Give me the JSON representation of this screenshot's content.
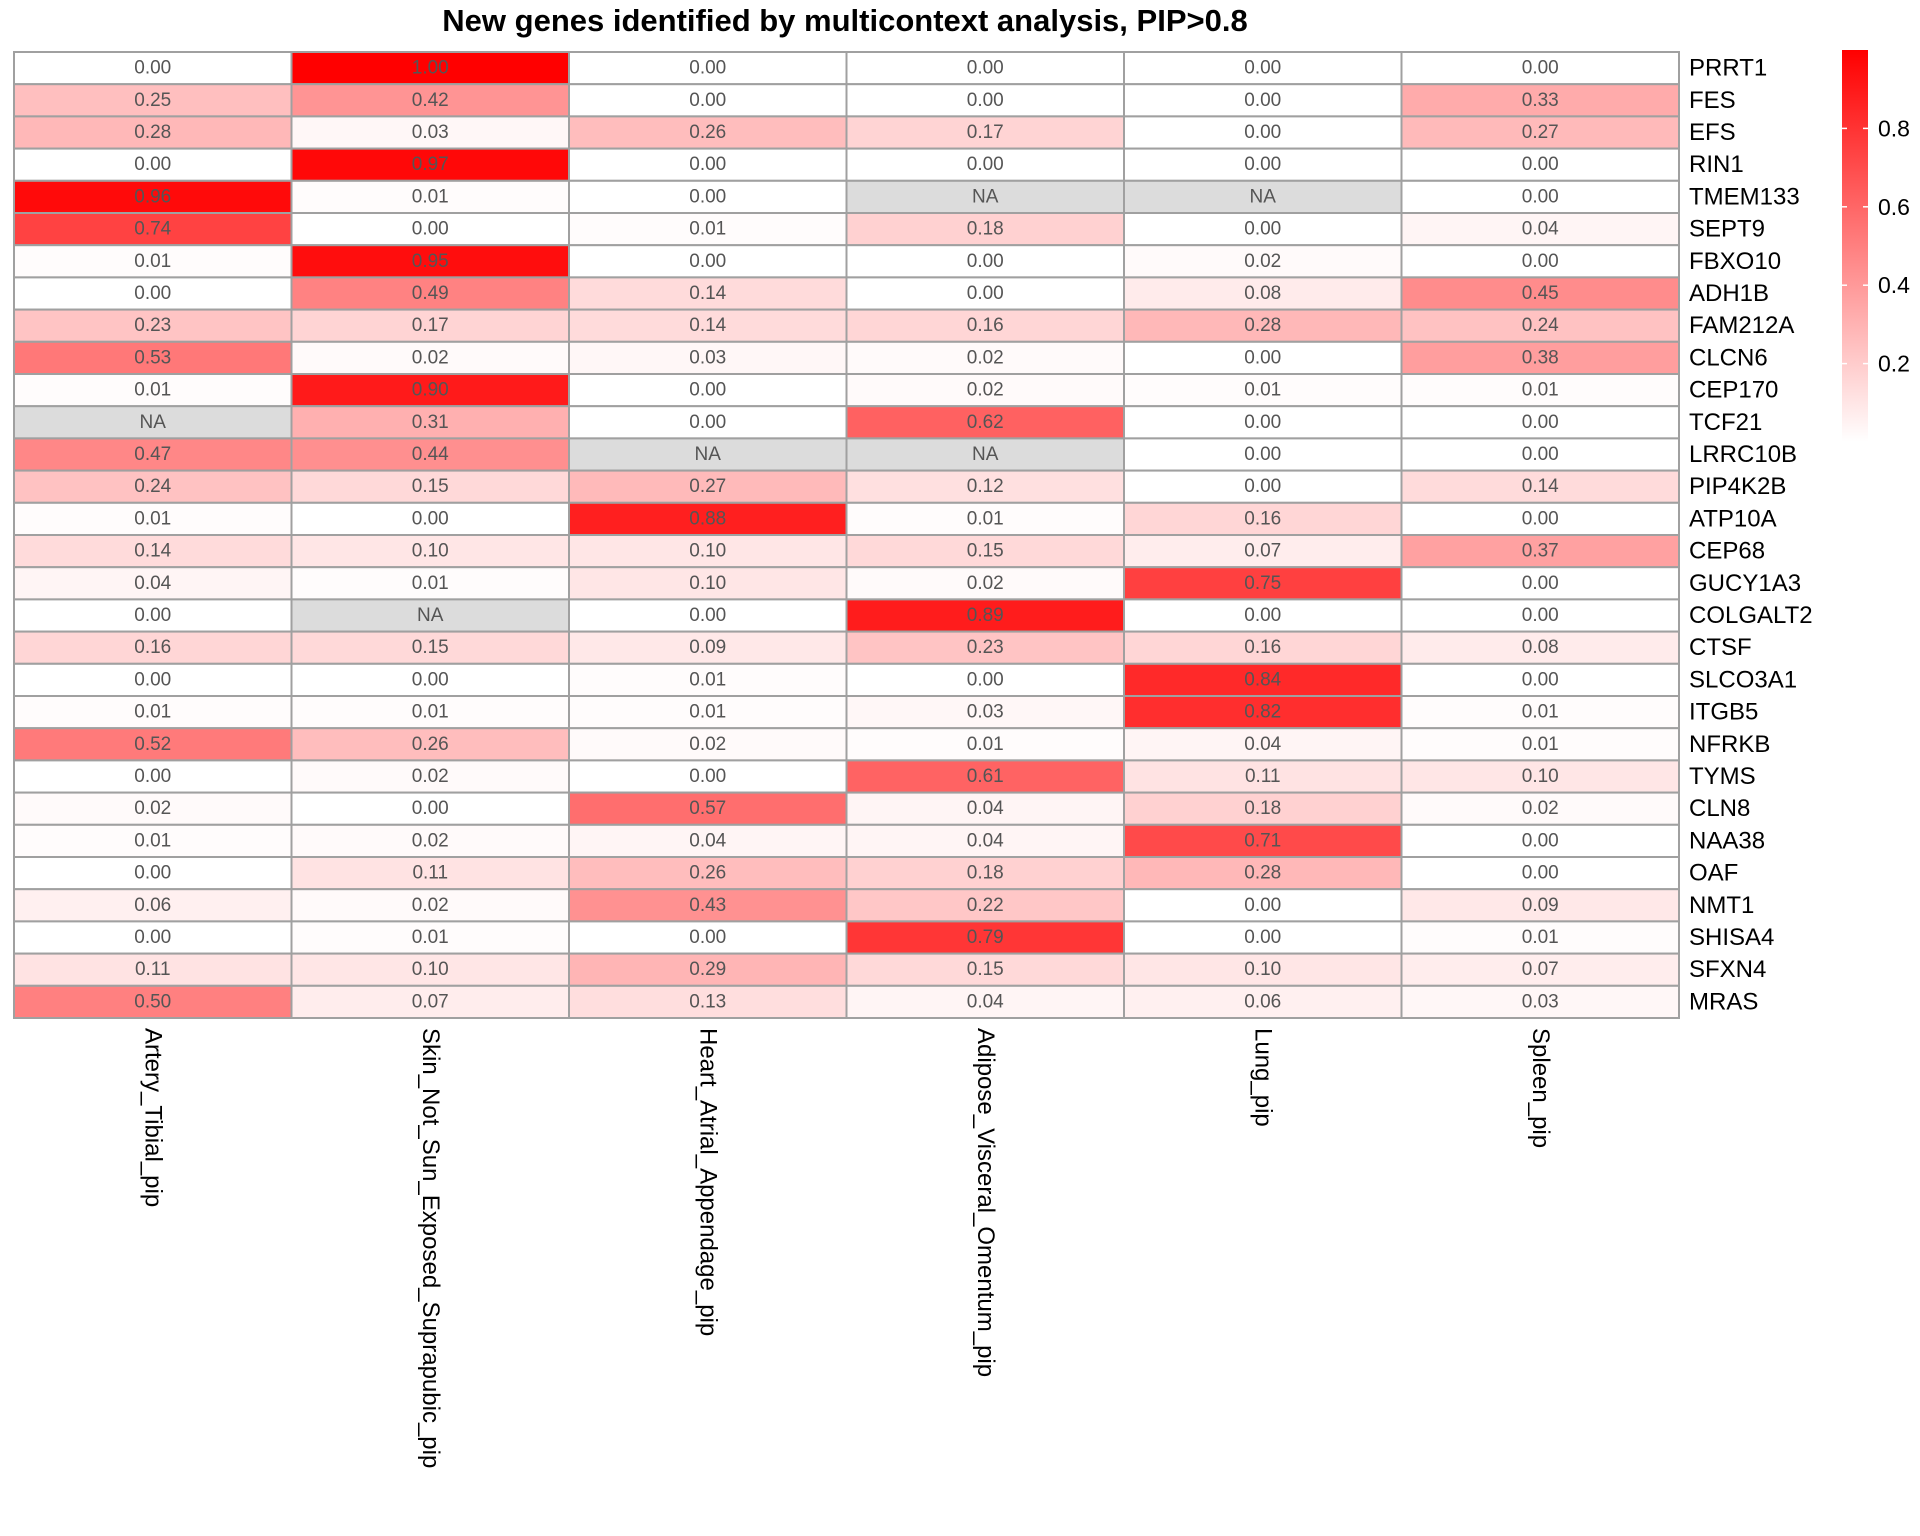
{
  "chart_data": {
    "type": "heatmap",
    "title": "New genes identified by multicontext analysis, PIP>0.8",
    "columns": [
      "Artery_Tibial_pip",
      "Skin_Not_Sun_Exposed_Suprapubic_pip",
      "Heart_Atrial_Appendage_pip",
      "Adipose_Visceral_Omentum_pip",
      "Lung_pip",
      "Spleen_pip"
    ],
    "rows": [
      "PRRT1",
      "FES",
      "EFS",
      "RIN1",
      "TMEM133",
      "SEPT9",
      "FBXO10",
      "ADH1B",
      "FAM212A",
      "CLCN6",
      "CEP170",
      "TCF21",
      "LRRC10B",
      "PIP4K2B",
      "ATP10A",
      "CEP68",
      "GUCY1A3",
      "COLGALT2",
      "CTSF",
      "SLCO3A1",
      "ITGB5",
      "NFRKB",
      "TYMS",
      "CLN8",
      "NAA38",
      "OAF",
      "NMT1",
      "SHISA4",
      "SFXN4",
      "MRAS"
    ],
    "values": [
      [
        0.0,
        1.0,
        0.0,
        0.0,
        0.0,
        0.0
      ],
      [
        0.25,
        0.42,
        0.0,
        0.0,
        0.0,
        0.33
      ],
      [
        0.28,
        0.03,
        0.26,
        0.17,
        0.0,
        0.27
      ],
      [
        0.0,
        0.97,
        0.0,
        0.0,
        0.0,
        0.0
      ],
      [
        0.96,
        0.01,
        0.0,
        null,
        null,
        0.0
      ],
      [
        0.74,
        0.0,
        0.01,
        0.18,
        0.0,
        0.04
      ],
      [
        0.01,
        0.95,
        0.0,
        0.0,
        0.02,
        0.0
      ],
      [
        0.0,
        0.49,
        0.14,
        0.0,
        0.08,
        0.45
      ],
      [
        0.23,
        0.17,
        0.14,
        0.16,
        0.28,
        0.24
      ],
      [
        0.53,
        0.02,
        0.03,
        0.02,
        0.0,
        0.38
      ],
      [
        0.01,
        0.9,
        0.0,
        0.02,
        0.01,
        0.01
      ],
      [
        null,
        0.31,
        0.0,
        0.62,
        0.0,
        0.0
      ],
      [
        0.47,
        0.44,
        null,
        null,
        0.0,
        0.0
      ],
      [
        0.24,
        0.15,
        0.27,
        0.12,
        0.0,
        0.14
      ],
      [
        0.01,
        0.0,
        0.88,
        0.01,
        0.16,
        0.0
      ],
      [
        0.14,
        0.1,
        0.1,
        0.15,
        0.07,
        0.37
      ],
      [
        0.04,
        0.01,
        0.1,
        0.02,
        0.75,
        0.0
      ],
      [
        0.0,
        null,
        0.0,
        0.89,
        0.0,
        0.0
      ],
      [
        0.16,
        0.15,
        0.09,
        0.23,
        0.16,
        0.08
      ],
      [
        0.0,
        0.0,
        0.01,
        0.0,
        0.84,
        0.0
      ],
      [
        0.01,
        0.01,
        0.01,
        0.03,
        0.82,
        0.01
      ],
      [
        0.52,
        0.26,
        0.02,
        0.01,
        0.04,
        0.01
      ],
      [
        0.0,
        0.02,
        0.0,
        0.61,
        0.11,
        0.1
      ],
      [
        0.02,
        0.0,
        0.57,
        0.04,
        0.18,
        0.02
      ],
      [
        0.01,
        0.02,
        0.04,
        0.04,
        0.71,
        0.0
      ],
      [
        0.0,
        0.11,
        0.26,
        0.18,
        0.28,
        0.0
      ],
      [
        0.06,
        0.02,
        0.43,
        0.22,
        0.0,
        0.09
      ],
      [
        0.0,
        0.01,
        0.0,
        0.79,
        0.0,
        0.01
      ],
      [
        0.11,
        0.1,
        0.29,
        0.15,
        0.1,
        0.07
      ],
      [
        0.5,
        0.07,
        0.13,
        0.04,
        0.06,
        0.03
      ]
    ],
    "na_label": "NA",
    "value_range": [
      0,
      1
    ],
    "color_low": "#ffffff",
    "color_high": "#ff0000",
    "na_color": "#dcdcdc",
    "grid_color": "#a0a0a0",
    "legend_ticks": [
      "0.8",
      "0.6",
      "0.4",
      "0.2"
    ],
    "legend_tick_values": [
      0.8,
      0.6,
      0.4,
      0.2
    ],
    "legend_placement": "right"
  }
}
